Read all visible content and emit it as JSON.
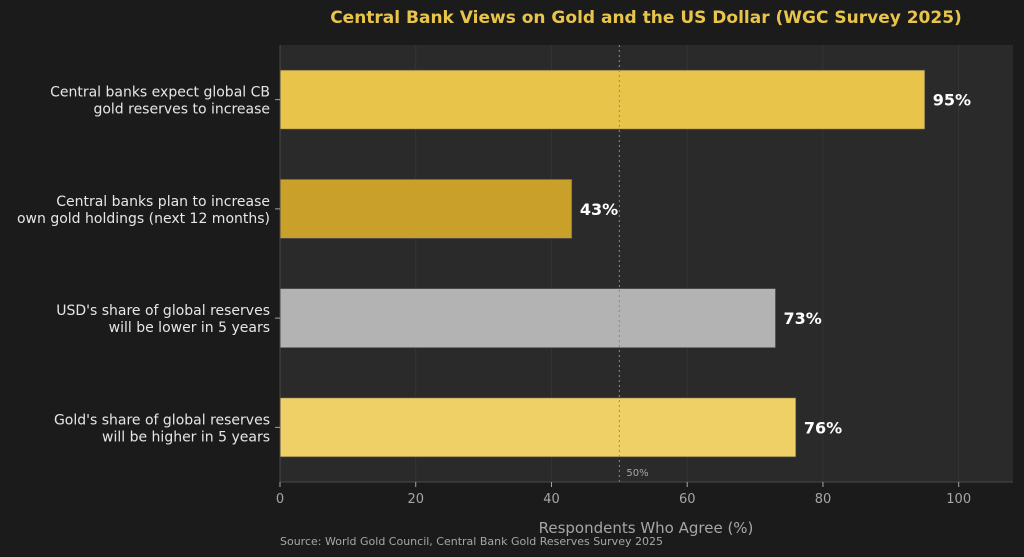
{
  "chart_data": {
    "type": "bar",
    "orientation": "horizontal",
    "title": "Central Bank Views on Gold and the US Dollar (WGC Survey 2025)",
    "xlabel": "Respondents Who Agree (%)",
    "ylabel": "",
    "xlim": [
      0,
      108
    ],
    "x_ticks": [
      0,
      20,
      40,
      60,
      80,
      100
    ],
    "grid": true,
    "categories": [
      {
        "line1": "Central banks expect global CB",
        "line2": "gold reserves to increase",
        "value": 95,
        "label": "95%",
        "color": "#e8c54a"
      },
      {
        "line1": "Central banks plan to increase",
        "line2": "own gold holdings (next 12 months)",
        "value": 43,
        "label": "43%",
        "color": "#c9a02a"
      },
      {
        "line1": "USD's share of global reserves",
        "line2": "will be lower in 5 years",
        "value": 73,
        "label": "73%",
        "color": "#b3b3b3"
      },
      {
        "line1": "Gold's share of global reserves",
        "line2": "will be higher in 5 years",
        "value": 76,
        "label": "76%",
        "color": "#efd066"
      }
    ],
    "reference_line": {
      "value": 50,
      "label": "50%"
    },
    "source": "Source: World Gold Council, Central Bank Gold Reserves Survey 2025"
  },
  "colors": {
    "title": "#e8c54a",
    "plot_bg": "#2a2a2a",
    "page_bg": "#1b1b1b",
    "text": "#e6e6e6",
    "axis_text": "#a6a6a6",
    "value_label": "#ffffff"
  }
}
